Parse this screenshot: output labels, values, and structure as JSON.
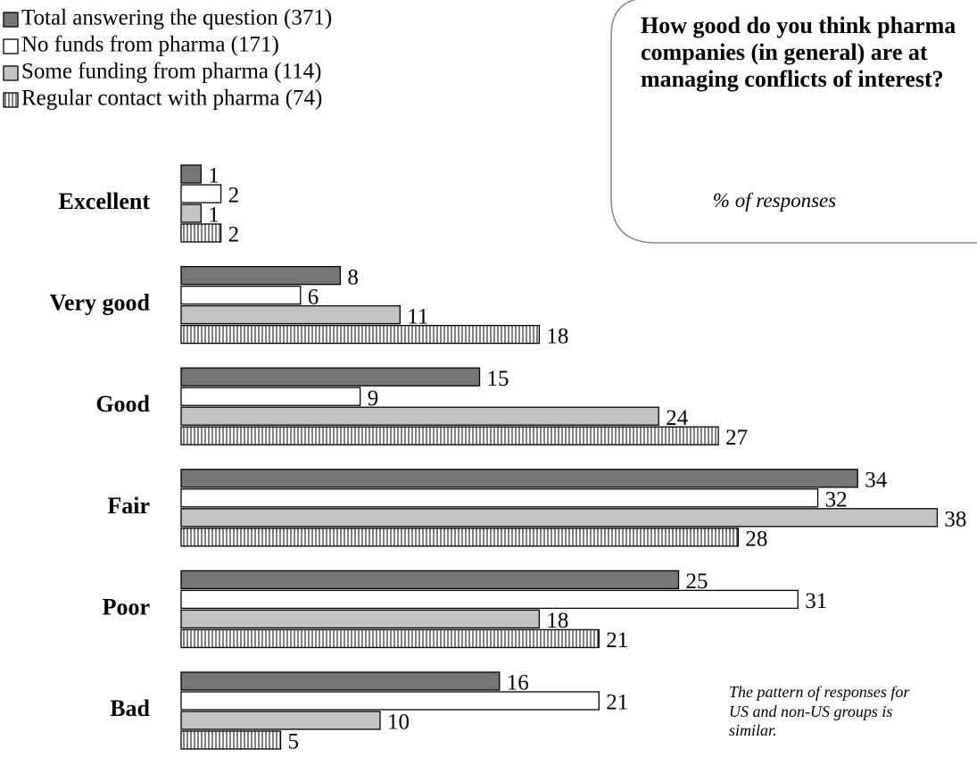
{
  "chart_data": {
    "type": "hbar",
    "title": "How good do you think pharma companies (in general) are at managing conflicts of interest?",
    "subtitle": "% of responses",
    "annotation": "The pattern of responses for US and non-US groups is similar.",
    "categories": [
      "Excellent",
      "Very good",
      "Good",
      "Fair",
      "Poor",
      "Bad"
    ],
    "series": [
      {
        "name": "Total answering the question (371)",
        "color": "#767676",
        "values": [
          1,
          8,
          15,
          34,
          25,
          16
        ]
      },
      {
        "name": "No funds from pharma (171)",
        "color": "#ffffff",
        "values": [
          2,
          6,
          9,
          32,
          31,
          21
        ]
      },
      {
        "name": "Some funding from pharma (114)",
        "color": "#c3c3c3",
        "values": [
          1,
          11,
          24,
          38,
          18,
          10
        ]
      },
      {
        "name": "Regular contact with pharma (74)",
        "color": "#ffffff",
        "hatch": "vertical",
        "values": [
          2,
          18,
          27,
          28,
          21,
          5
        ]
      }
    ]
  }
}
